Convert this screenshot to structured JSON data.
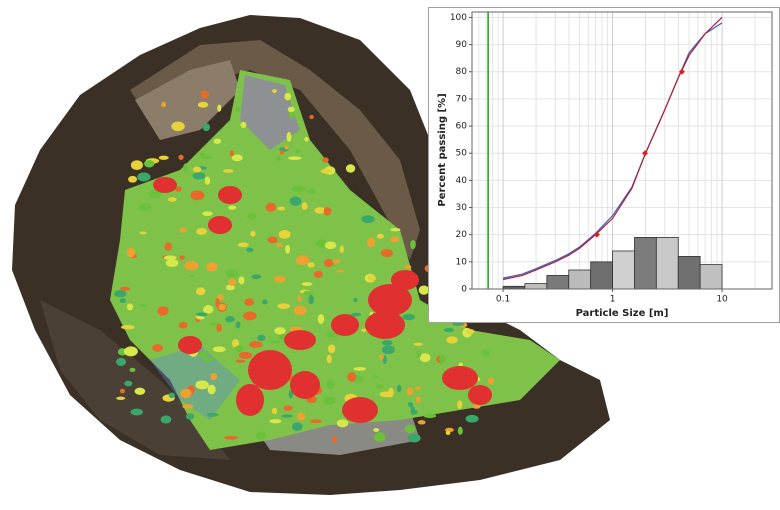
{
  "chart_data": [
    {
      "type": "line",
      "x_label": "Particle Size [m]",
      "y_label": "Percent passing [%]",
      "xlim": [
        0.052,
        28.6
      ],
      "ylim": [
        0,
        102
      ],
      "log_x": true,
      "grid": true,
      "xticks": [
        0.1,
        1,
        10
      ],
      "yticks": [
        0,
        10,
        20,
        30,
        40,
        50,
        60,
        70,
        80,
        90,
        100
      ],
      "vlines": [
        0.073
      ],
      "vline_color": "#1aa01a",
      "series": [
        {
          "color": "#3a5fc8",
          "style": "line",
          "x": [
            0.1,
            0.15,
            0.2,
            0.3,
            0.4,
            0.5,
            0.7,
            1,
            1.5,
            2,
            3,
            4,
            5,
            7,
            10
          ],
          "values": [
            4,
            5.5,
            7.5,
            10.5,
            13,
            15.5,
            20.5,
            27,
            37.5,
            50,
            66,
            78,
            87,
            94,
            98
          ]
        },
        {
          "color": "#b02030",
          "style": "line",
          "x": [
            0.1,
            0.15,
            0.2,
            0.3,
            0.4,
            0.5,
            0.7,
            1,
            1.5,
            2,
            3,
            4,
            5,
            7,
            10
          ],
          "values": [
            3.5,
            5,
            7,
            10,
            12.5,
            15,
            20,
            26,
            37,
            50,
            66,
            78,
            86,
            94,
            100
          ]
        },
        {
          "color": "#e02020",
          "style": "markers",
          "x": [
            0.72,
            1.98,
            4.3
          ],
          "values": [
            20,
            50,
            80
          ]
        }
      ]
    },
    {
      "type": "histogram",
      "xlim": [
        0.052,
        28.6
      ],
      "ylim": [
        0,
        102
      ],
      "log_x": true,
      "bins": [
        0.1,
        0.158,
        0.251,
        0.398,
        0.631,
        1,
        1.585,
        2.512,
        3.981,
        6.31,
        10
      ],
      "values": [
        1,
        2,
        5,
        7,
        10,
        14,
        19,
        19,
        12,
        9
      ],
      "colors": [
        "#606060",
        "#bdbdbd",
        "#7a7a7a",
        "#bbbbbb",
        "#6e6e6e",
        "#d0d0d0",
        "#7c7c7c",
        "#c8c8c8",
        "#707070",
        "#c0c0c0"
      ]
    }
  ]
}
